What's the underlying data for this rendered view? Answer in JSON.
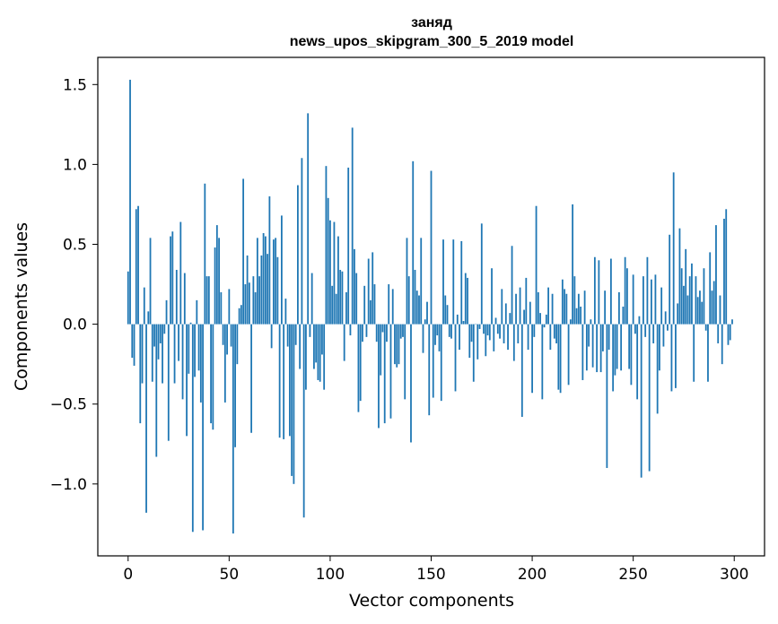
{
  "chart_data": {
    "type": "bar",
    "title": "заняд",
    "subtitle": "news_upos_skipgram_300_5_2019 model",
    "xlabel": "Vector components",
    "ylabel": "Components values",
    "xlim": [
      -15,
      315
    ],
    "ylim": [
      -1.45,
      1.67
    ],
    "xticks": [
      0,
      50,
      100,
      150,
      200,
      250,
      300
    ],
    "xtick_labels": [
      "0",
      "50",
      "100",
      "150",
      "200",
      "250",
      "300"
    ],
    "yticks": [
      -1.0,
      -0.5,
      0.0,
      0.5,
      1.0,
      1.5
    ],
    "ytick_labels": [
      "−1.0",
      "−0.5",
      "0.0",
      "0.5",
      "1.0",
      "1.5"
    ],
    "grid": false,
    "bar_color": "#1f77b4",
    "x": "component index 0..299",
    "values": [
      0.33,
      1.53,
      -0.21,
      -0.26,
      0.72,
      0.74,
      -0.62,
      -0.37,
      0.23,
      -1.18,
      0.08,
      0.54,
      -0.36,
      -0.14,
      -0.83,
      -0.22,
      -0.12,
      -0.37,
      -0.06,
      0.15,
      -0.73,
      0.55,
      0.58,
      -0.37,
      0.34,
      -0.23,
      0.64,
      -0.47,
      0.32,
      -0.7,
      -0.31,
      0.01,
      -1.3,
      -0.33,
      0.15,
      -0.29,
      -0.49,
      -1.29,
      0.88,
      0.3,
      0.3,
      -0.62,
      -0.66,
      0.48,
      0.62,
      0.54,
      0.2,
      -0.13,
      -0.49,
      -0.19,
      0.22,
      -0.14,
      -1.31,
      -0.77,
      -0.25,
      0.1,
      0.12,
      0.91,
      0.25,
      0.43,
      0.26,
      -0.68,
      0.3,
      0.2,
      0.54,
      0.3,
      0.43,
      0.57,
      0.55,
      0.44,
      0.8,
      -0.15,
      0.53,
      0.54,
      0.42,
      -0.71,
      0.68,
      -0.72,
      0.16,
      -0.14,
      -0.7,
      -0.95,
      -1.0,
      -0.13,
      0.87,
      -0.28,
      1.04,
      -1.21,
      -0.41,
      1.32,
      -0.08,
      0.32,
      -0.28,
      -0.24,
      -0.35,
      -0.36,
      -0.19,
      -0.41,
      0.99,
      0.79,
      0.65,
      0.24,
      0.64,
      0.19,
      0.55,
      0.34,
      0.33,
      -0.23,
      0.2,
      0.98,
      -0.07,
      1.23,
      0.47,
      0.32,
      -0.55,
      -0.48,
      -0.11,
      0.24,
      -0.08,
      0.41,
      0.15,
      0.45,
      0.25,
      -0.11,
      -0.65,
      -0.32,
      -0.05,
      -0.62,
      -0.11,
      0.25,
      -0.59,
      0.22,
      -0.25,
      -0.27,
      -0.25,
      -0.09,
      -0.08,
      -0.47,
      0.54,
      0.3,
      -0.74,
      1.02,
      0.34,
      0.21,
      0.18,
      0.54,
      -0.18,
      0.03,
      0.14,
      -0.57,
      0.96,
      -0.46,
      -0.13,
      -0.07,
      -0.17,
      -0.48,
      0.53,
      0.18,
      0.12,
      -0.08,
      -0.09,
      0.53,
      -0.42,
      0.06,
      -0.16,
      0.52,
      0.02,
      0.32,
      0.29,
      -0.21,
      -0.11,
      -0.36,
      0.0,
      -0.22,
      -0.03,
      0.63,
      -0.06,
      -0.2,
      -0.07,
      -0.1,
      0.35,
      -0.17,
      0.04,
      -0.06,
      -0.09,
      0.22,
      -0.12,
      0.13,
      -0.16,
      0.07,
      0.49,
      -0.23,
      0.19,
      -0.12,
      0.23,
      -0.58,
      0.09,
      0.29,
      -0.16,
      0.14,
      -0.43,
      -0.08,
      0.74,
      0.2,
      0.07,
      -0.47,
      -0.02,
      0.06,
      0.23,
      -0.16,
      0.19,
      -0.09,
      -0.12,
      -0.41,
      -0.43,
      0.28,
      0.22,
      0.19,
      -0.38,
      0.03,
      0.75,
      0.3,
      0.1,
      0.19,
      0.11,
      -0.35,
      0.21,
      -0.29,
      -0.14,
      0.03,
      -0.27,
      0.42,
      -0.3,
      0.4,
      -0.3,
      -0.17,
      0.21,
      -0.9,
      -0.16,
      0.41,
      -0.42,
      -0.32,
      -0.28,
      0.2,
      -0.29,
      0.11,
      0.42,
      0.35,
      -0.28,
      -0.38,
      0.31,
      -0.06,
      -0.47,
      0.05,
      -0.96,
      0.3,
      -0.08,
      0.42,
      -0.92,
      0.28,
      -0.12,
      0.31,
      -0.56,
      -0.29,
      0.23,
      -0.14,
      0.08,
      -0.04,
      0.56,
      -0.42,
      0.95,
      -0.4,
      0.13,
      0.6,
      0.35,
      0.24,
      0.47,
      0.18,
      0.3,
      0.38,
      -0.36,
      0.3,
      0.17,
      0.21,
      0.14,
      0.35,
      -0.04,
      -0.36,
      0.45,
      0.21,
      0.27,
      0.62,
      -0.12,
      0.18,
      -0.25,
      0.66,
      0.72,
      -0.13,
      -0.1,
      0.03
    ]
  }
}
